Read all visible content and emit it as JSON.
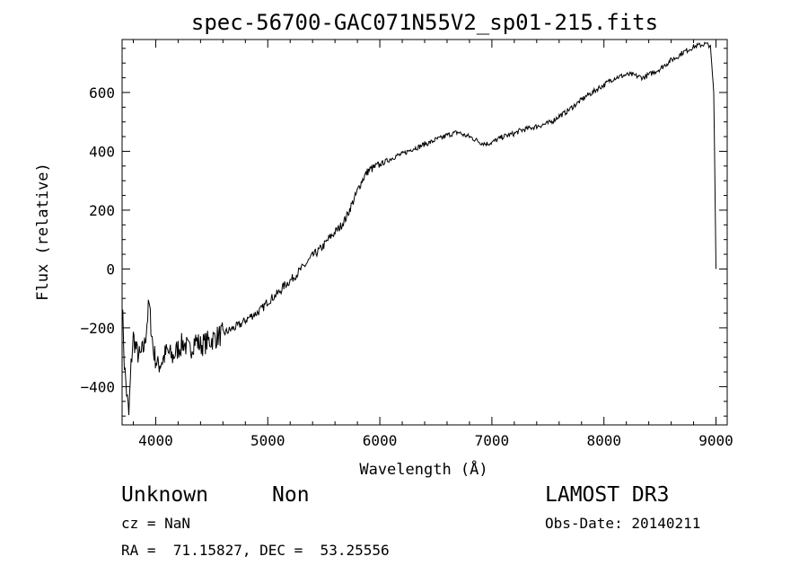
{
  "chart_data": {
    "type": "line",
    "title": "spec-56700-GAC071N55V2_sp01-215.fits",
    "xlabel": "Wavelength (Å)",
    "ylabel": "Flux (relative)",
    "xlim": [
      3700,
      9100
    ],
    "ylim": [
      -530,
      780
    ],
    "x_ticks": [
      4000,
      5000,
      6000,
      7000,
      8000,
      9000
    ],
    "x_tick_labels": [
      "4000",
      "5000",
      "6000",
      "7000",
      "8000",
      "9000"
    ],
    "y_ticks": [
      -400,
      -200,
      0,
      200,
      400,
      600
    ],
    "y_tick_labels": [
      "−400",
      "−200",
      "0",
      "200",
      "400",
      "600"
    ],
    "grid": false,
    "legend": "none",
    "line_color": "#000000",
    "series": [
      {
        "x": [
          3700,
          3720,
          3740,
          3760,
          3780,
          3800,
          3830,
          3860,
          3900,
          3940,
          3980,
          4020,
          4060,
          4100,
          4150,
          4200,
          4250,
          4300,
          4350,
          4400,
          4450,
          4500,
          4550,
          4600,
          4650,
          4700,
          4750,
          4800,
          4850,
          4900,
          4950,
          5000,
          5050,
          5100,
          5150,
          5200,
          5250,
          5300,
          5350,
          5400,
          5450,
          5500,
          5550,
          5600,
          5650,
          5700,
          5750,
          5780,
          5810,
          5840,
          5870,
          5900,
          5950,
          6000,
          6050,
          6100,
          6150,
          6200,
          6250,
          6300,
          6350,
          6400,
          6450,
          6500,
          6550,
          6600,
          6650,
          6700,
          6750,
          6800,
          6850,
          6900,
          6950,
          7000,
          7050,
          7100,
          7150,
          7200,
          7250,
          7300,
          7350,
          7400,
          7450,
          7500,
          7550,
          7600,
          7650,
          7700,
          7750,
          7800,
          7850,
          7900,
          7950,
          8000,
          8050,
          8100,
          8150,
          8200,
          8250,
          8300,
          8350,
          8400,
          8450,
          8500,
          8550,
          8600,
          8650,
          8700,
          8750,
          8800,
          8850,
          8900,
          8950,
          8980,
          9000
        ],
        "y": [
          -100,
          -320,
          -420,
          -500,
          -330,
          -230,
          -280,
          -300,
          -260,
          -120,
          -280,
          -330,
          -310,
          -280,
          -300,
          -270,
          -250,
          -280,
          -240,
          -260,
          -250,
          -240,
          -230,
          -220,
          -210,
          -200,
          -190,
          -175,
          -160,
          -150,
          -135,
          -110,
          -95,
          -80,
          -55,
          -40,
          -20,
          0,
          20,
          45,
          60,
          80,
          105,
          125,
          145,
          175,
          220,
          245,
          275,
          300,
          320,
          335,
          345,
          355,
          365,
          375,
          385,
          390,
          400,
          410,
          415,
          425,
          430,
          440,
          445,
          455,
          460,
          465,
          455,
          450,
          440,
          430,
          425,
          430,
          440,
          450,
          455,
          460,
          470,
          475,
          480,
          485,
          490,
          495,
          505,
          520,
          530,
          545,
          560,
          575,
          590,
          600,
          615,
          625,
          640,
          650,
          655,
          660,
          660,
          655,
          650,
          660,
          670,
          680,
          695,
          710,
          720,
          735,
          745,
          755,
          760,
          765,
          760,
          600,
          0
        ]
      }
    ]
  },
  "info": {
    "class_label": "Unknown",
    "subclass_label": "Non",
    "survey": "LAMOST DR3",
    "cz": "cz = NaN",
    "obs_date": "Obs-Date: 20140211",
    "coords": "RA =  71.15827, DEC =  53.25556"
  }
}
